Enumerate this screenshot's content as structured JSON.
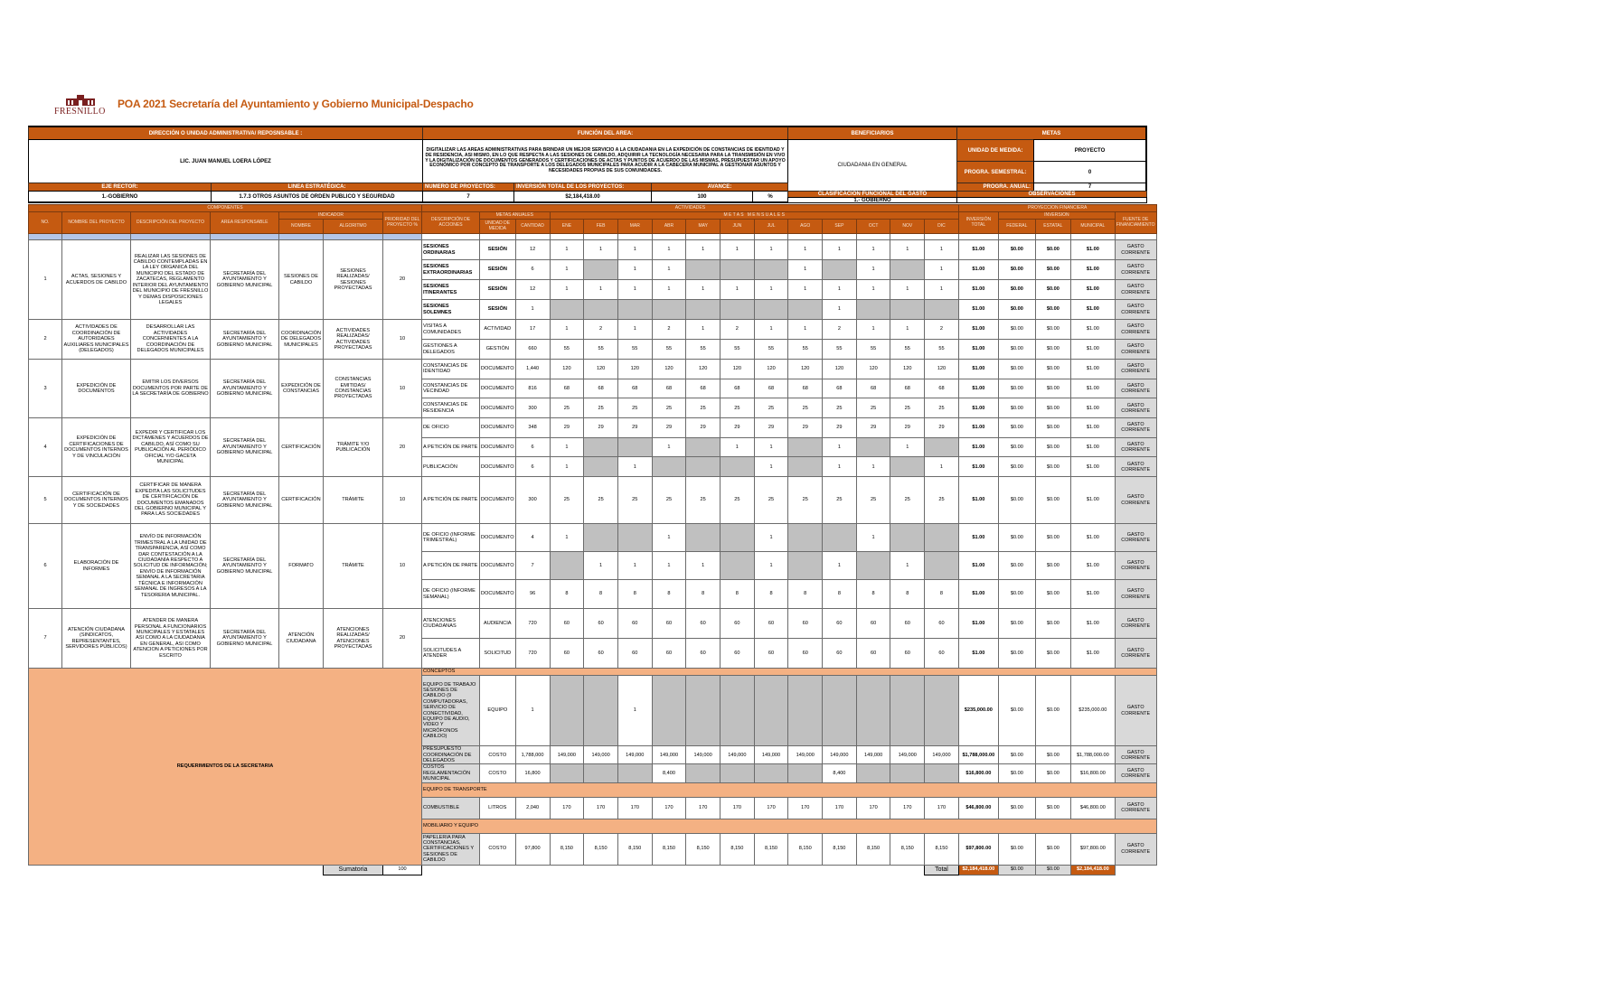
{
  "header": {
    "logo_text": "FRESNILLO",
    "title": "POA 2021 Secretaría del Ayuntamiento y Gobierno Municipal-Despacho"
  },
  "colors": {
    "brand_orange": "#c55a11",
    "light_orange": "#f4b183",
    "blue": "#b4c6e7",
    "gray": "#d9d9d9"
  },
  "info": {
    "direccion_label": "DIRECCIÓN O UNIDAD ADMINISTRATIVA/ REPOSNSABLE :",
    "direccion_value": "LIC. JUAN MANUEL LOERA LÓPEZ",
    "funcion_label": "FUNCIÓN DEL AREA:",
    "funcion_value": "DIGITALIZAR LAS AREAS ADMINISTRATIVAS PARA BRINDAR UN MEJOR SERVICIO A LA CIUDADANIA EN LA EXPEDICIÓN DE CONSTANCIAS DE IDENTIDAD Y DE RESIDENCIA, ASI MISMO, EN LO QUE RESPECTA A LAS SESIONES DE CABILDO, ADQUIRIR LA TECNOLOGÍA NECESARIA PARA LA TRANSMISIÓN EN VIVO Y LA DIGITALIZACIÓN DE DOCUMENTOS GENERADOS Y CERTIFICACIONES DE ACTAS Y PUNTOS DE ACUERDO DE LAS MISMAS, PRESUPUESTAR UN APOYO ECONÓMICO POR CONCEPTO DE TRANSPORTE A LOS DELEGADOS MUNICIPALES PARA ACUDIR A LA CABECERA MUNICIPAL A GESTIONAR ASUNTOS Y NECESIDADES PROPIAS DE SUS COMUNIDADES.",
    "beneficiarios_label": "BENEFICIARIOS",
    "beneficiarios_value": "CIUDADANIA EN GENERAL",
    "metas_label": "METAS",
    "unidad_medida_label": "UNIDAD DE MEDIDA:",
    "unidad_medida_value": "PROYECTO",
    "progra_semestral_label": "PROGRA. SEMESTRAL:",
    "progra_semestral_value": "0",
    "progra_anual_label": "PROGRA. ANUAL:",
    "progra_anual_value": "7",
    "eje_label": "EJE RECTOR:",
    "eje_value": "1.-GOBIERNO",
    "linea_label": "LINEA ESTRATÉGICA:",
    "linea_value": "1.7.3 OTROS ASUNTOS DE ORDEN PUBLICO Y SEGURIDAD",
    "num_proyectos_label": "NUMERO DE PROYECTOS:",
    "num_proyectos_value": "7",
    "inversion_label": "INVERSIÓN TOTAL DE LOS PROYECTOS:",
    "inversion_value": "$2,184,418.00",
    "avance_label": "AVANCE:",
    "avance_value": "100",
    "avance_unit": "%",
    "clasificacion_label": "CLASIFICACION FUNCIONAL DEL GASTO",
    "clasificacion_value": "1.- GOBIERNO",
    "observaciones_label": "OBSERVACIONES",
    "observaciones_value": ""
  },
  "columns": {
    "componentes": "COMPONENTES",
    "actividades": "ACTIVIDADES",
    "proyeccion": "PROYECCION FINANCIERA",
    "no": "NO.",
    "nombre_proyecto": "NOMBRE DEL PROYECTO",
    "descripcion_proyecto": "DESCRIPCIÓN DEL PROYECTO",
    "area": "AREA RESPONSABLE",
    "indicador": "INDICADOR",
    "indicador_nombre": "NOMBRE",
    "algoritmo": "ALGORITMO",
    "prioridad": "PRIORIDAD DEL PROYECTO %",
    "descripcion_acciones": "DESCRIPCIÓN DE ACCIONES",
    "metas_anuales": "METAS ANUALES",
    "unidad_medida": "UNIDAD DE MEDIDA",
    "cantidad": "CANTIDAD",
    "metas_mensuales": "M E T A S   M E N S U A L E S",
    "months": [
      "ENE",
      "FEB",
      "MAR",
      "ABR",
      "MAY",
      "JUN",
      "JUL",
      "AGO",
      "SEP",
      "OCT",
      "NOV",
      "DIC"
    ],
    "inversion_total": "INVERSIÓN TOTAL",
    "inversion": "INVERSIÓN",
    "federal": "FEDERAL",
    "estatal": "ESTATAL",
    "municipal": "MUNICIPAL",
    "fuente": "FUENTE DE FINANCIAMIENTO"
  },
  "projects": [
    {
      "no": "1",
      "nombre": "ACTAS, SESIONES Y ACUERDOS DE CABILDO",
      "descripcion": "REALIZAR LAS SESIONES DE CABILDO CONTEMPLADAS EN LA LEY ORGANICA DEL MUNICIPIO DEL ESTADO DE ZACATECAS, REGLAMENTO INTERIOR DEL AYUNTAMIENTO DEL MUNICIPIO DE FRESNILLO Y DEMAS DISPOSICIONES LEGALES",
      "area": "SECRETARÍA DEL AYUNTAMIENTO Y GOBIERNO MUNICIPAL",
      "indicador": "SESIONES DE CABILDO",
      "algoritmo": "SESIONES REALIZADAS/ SESIONES PROYECTADAS",
      "prioridad": "20",
      "bold": true,
      "acciones": [
        {
          "desc": "SESIONES ORDINARIAS",
          "unidad": "SESIÓN",
          "cantidad": "12",
          "months": [
            "1",
            "1",
            "1",
            "1",
            "1",
            "1",
            "1",
            "1",
            "1",
            "1",
            "1",
            "1"
          ],
          "inversion": "$1.00",
          "federal": "$0.00",
          "estatal": "$0.00",
          "municipal": "$1.00",
          "fuente": "GASTO CORRIENTE"
        },
        {
          "desc": "SESIONES EXTRAORDINARIAS",
          "unidad": "SESIÓN",
          "cantidad": "6",
          "months": [
            "1",
            null,
            "1",
            "1",
            null,
            null,
            null,
            "1",
            null,
            "1",
            null,
            "1"
          ],
          "inversion": "$1.00",
          "federal": "$0.00",
          "estatal": "$0.00",
          "municipal": "$1.00",
          "fuente": "GASTO CORRIENTE"
        },
        {
          "desc": "SESIONES ITINERANTES",
          "unidad": "SESIÓN",
          "cantidad": "12",
          "months": [
            "1",
            "1",
            "1",
            "1",
            "1",
            "1",
            "1",
            "1",
            "1",
            "1",
            "1",
            "1"
          ],
          "inversion": "$1.00",
          "federal": "$0.00",
          "estatal": "$0.00",
          "municipal": "$1.00",
          "fuente": "GASTO CORRIENTE"
        },
        {
          "desc": "SESIONES SOLEMNES",
          "unidad": "SESIÓN",
          "cantidad": "1",
          "months": [
            null,
            null,
            null,
            null,
            null,
            null,
            null,
            null,
            "1",
            null,
            null,
            null
          ],
          "inversion": "$1.00",
          "federal": "$0.00",
          "estatal": "$0.00",
          "municipal": "$1.00",
          "fuente": "GASTO CORRIENTE"
        }
      ]
    },
    {
      "no": "2",
      "nombre": "ACTIVIDADES DE COORDINACIÓN DE AUTORIDADES AUXILIARES MUNICIPALES (DELEGADOS)",
      "descripcion": "DESARROLLAR LAS ACTIVIDADES CONCERNIENTES A LA COORDINACIÓN DE DELEGADOS MUNICIPALES",
      "area": "SECRETARÍA DEL AYUNTAMIENTO Y GOBIERNO MUNICIPAL",
      "indicador": "COORDINACIÓN DE DELEGADOS MUNICIPALES",
      "algoritmo": "ACTIVIDADES REALIZADAS/ ACTIVIDADES PROYECTADAS",
      "prioridad": "10",
      "acciones": [
        {
          "desc": "VISITAS A COMUNIDADES",
          "unidad": "ACTIVIDAD",
          "cantidad": "17",
          "months": [
            "1",
            "2",
            "1",
            "2",
            "1",
            "2",
            "1",
            "1",
            "2",
            "1",
            "1",
            "2"
          ],
          "inversion": "$1.00",
          "federal": "$0.00",
          "estatal": "$0.00",
          "municipal": "$1.00",
          "fuente": "GASTO CORRIENTE"
        },
        {
          "desc": "GESTIONES A DELEGADOS",
          "unidad": "GESTIÓN",
          "cantidad": "660",
          "months": [
            "55",
            "55",
            "55",
            "55",
            "55",
            "55",
            "55",
            "55",
            "55",
            "55",
            "55",
            "55"
          ],
          "inversion": "$1.00",
          "federal": "$0.00",
          "estatal": "$0.00",
          "municipal": "$1.00",
          "fuente": "GASTO CORRIENTE"
        }
      ]
    },
    {
      "no": "3",
      "nombre": "EXPEDICIÓN DE DOCUMENTOS",
      "descripcion": "EMITIR LOS DIVERSOS DOCUMENTOS POR PARTE DE LA SECRETARÍA DE GOBIERNO",
      "area": "SECRETARÍA DEL AYUNTAMIENTO Y GOBIERNO MUNICIPAL",
      "indicador": "EXPEDICIÓN DE CONSTANCIAS",
      "algoritmo": "CONSTANCIAS EMITIDAS/ CONSTANCIAS PROYECTADAS",
      "prioridad": "10",
      "acciones": [
        {
          "desc": "CONSTANCIAS DE IDENTIDAD",
          "unidad": "DOCUMENTO",
          "cantidad": "1,440",
          "months": [
            "120",
            "120",
            "120",
            "120",
            "120",
            "120",
            "120",
            "120",
            "120",
            "120",
            "120",
            "120"
          ],
          "inversion": "$1.00",
          "federal": "$0.00",
          "estatal": "$0.00",
          "municipal": "$1.00",
          "fuente": "GASTO CORRIENTE"
        },
        {
          "desc": "CONSTANCIAS DE VECINDAD",
          "unidad": "DOCUMENTO",
          "cantidad": "816",
          "months": [
            "68",
            "68",
            "68",
            "68",
            "68",
            "68",
            "68",
            "68",
            "68",
            "68",
            "68",
            "68"
          ],
          "inversion": "$1.00",
          "federal": "$0.00",
          "estatal": "$0.00",
          "municipal": "$1.00",
          "fuente": "GASTO CORRIENTE"
        },
        {
          "desc": "CONSTANCIAS DE RESIDENCIA",
          "unidad": "DOCUMENTO",
          "cantidad": "300",
          "months": [
            "25",
            "25",
            "25",
            "25",
            "25",
            "25",
            "25",
            "25",
            "25",
            "25",
            "25",
            "25"
          ],
          "inversion": "$1.00",
          "federal": "$0.00",
          "estatal": "$0.00",
          "municipal": "$1.00",
          "fuente": "GASTO CORRIENTE"
        }
      ]
    },
    {
      "no": "4",
      "nombre": "EXPEDICIÓN DE CERTIFICACIONES DE DOCUMENTOS INTERNOS Y DE VINCULACIÓN",
      "descripcion": "EXPEDIR Y CERTIFICAR LOS DICTÁMENES Y ACUERDOS DE CABILDO, ASÍ COMO SU PUBLICACIÓN AL PERIÓDICO OFICIAL Y/O GACETA MUNICIPAL",
      "area": "SECRETARÍA DEL AYUNTAMIENTO Y GOBIERNO MUNICIPAL",
      "indicador": "CERTIFICACIÓN",
      "algoritmo": "TRÁMITE Y/O PUBLICACIÓN",
      "prioridad": "20",
      "acciones": [
        {
          "desc": "DE OFICIO",
          "unidad": "DOCUMENTO",
          "cantidad": "348",
          "months": [
            "29",
            "29",
            "29",
            "29",
            "29",
            "29",
            "29",
            "29",
            "29",
            "29",
            "29",
            "29"
          ],
          "inversion": "$1.00",
          "federal": "$0.00",
          "estatal": "$0.00",
          "municipal": "$1.00",
          "fuente": "GASTO CORRIENTE"
        },
        {
          "desc": "A PETICIÓN DE PARTE",
          "unidad": "DOCUMENTO",
          "cantidad": "6",
          "months": [
            "1",
            null,
            null,
            "1",
            null,
            "1",
            "1",
            null,
            "1",
            null,
            "1",
            null
          ],
          "inversion": "$1.00",
          "federal": "$0.00",
          "estatal": "$0.00",
          "municipal": "$1.00",
          "fuente": "GASTO CORRIENTE"
        },
        {
          "desc": "PUBLICACIÓN",
          "unidad": "DOCUMENTO",
          "cantidad": "6",
          "months": [
            "1",
            null,
            "1",
            null,
            null,
            null,
            "1",
            null,
            "1",
            "1",
            null,
            "1"
          ],
          "inversion": "$1.00",
          "federal": "$0.00",
          "estatal": "$0.00",
          "municipal": "$1.00",
          "fuente": "GASTO CORRIENTE"
        }
      ]
    },
    {
      "no": "5",
      "nombre": "CERTIFICACIÓN DE DOCUMENTOS INTERNOS Y DE SOCIEDADES",
      "descripcion": "CERTIFICAR DE MANERA EXPEDITA LAS SOLICITUDES DE CERTIFICACIÓN DE DOCUMENTOS EMANADOS DEL GOBIERNO MUNICIPAL Y PARA LAS SOCIEDADES",
      "area": "SECRETARÍA DEL AYUNTAMIENTO Y GOBIERNO MUNICIPAL",
      "indicador": "CERTIFICACIÓN",
      "algoritmo": "TRÁMITE",
      "prioridad": "10",
      "acciones": [
        {
          "desc": "A PETICIÓN DE PARTE",
          "unidad": "DOCUMENTO",
          "cantidad": "300",
          "months": [
            "25",
            "25",
            "25",
            "25",
            "25",
            "25",
            "25",
            "25",
            "25",
            "25",
            "25",
            "25"
          ],
          "inversion": "$1.00",
          "federal": "$0.00",
          "estatal": "$0.00",
          "municipal": "$1.00",
          "fuente": "GASTO CORRIENTE"
        }
      ]
    },
    {
      "no": "6",
      "nombre": "ELABORACIÓN DE INFORMES",
      "descripcion": "ENVÍO DE INFORMACIÓN TRIMESTRAL A LA UNIDAD DE TRANSPARENCIA, ASÍ COMO DAR CONTESTACIÓN A LA CIUDADANÍA RESPECTO A SOLICITUD DE INFORMACIÓN; ENVÍO DE INFORMACIÓN SEMANAL A LA SECRETARIA TÉCNICA E INFORMACIÓN SEMANAL DE INGRESOS A LA TESORERIA MUNICIPAL.",
      "area": "SECRETARÍA DEL AYUNTAMIENTO Y GOBIERNO MUNICIPAL",
      "indicador": "FORMATO",
      "algoritmo": "TRÁMITE",
      "prioridad": "10",
      "acciones": [
        {
          "desc": "DE OFICIO (INFORME TRIMESTRAL)",
          "unidad": "DOCUMENTO",
          "cantidad": "4",
          "months": [
            "1",
            null,
            null,
            "1",
            null,
            null,
            "1",
            null,
            null,
            "1",
            null,
            null
          ],
          "inversion": "$1.00",
          "federal": "$0.00",
          "estatal": "$0.00",
          "municipal": "$1.00",
          "fuente": "GASTO CORRIENTE"
        },
        {
          "desc": "A PETICIÓN DE PARTE",
          "unidad": "DOCUMENTO",
          "cantidad": "7",
          "months": [
            null,
            "1",
            "1",
            "1",
            "1",
            null,
            "1",
            null,
            "1",
            null,
            "1",
            null
          ],
          "inversion": "$1.00",
          "federal": "$0.00",
          "estatal": "$0.00",
          "municipal": "$1.00",
          "fuente": "GASTO CORRIENTE"
        },
        {
          "desc": "DE OFICIO (INFORME SEMANAL)",
          "unidad": "DOCUMENTO",
          "cantidad": "96",
          "months": [
            "8",
            "8",
            "8",
            "8",
            "8",
            "8",
            "8",
            "8",
            "8",
            "8",
            "8",
            "8"
          ],
          "inversion": "$1.00",
          "federal": "$0.00",
          "estatal": "$0.00",
          "municipal": "$1.00",
          "fuente": "GASTO CORRIENTE"
        }
      ]
    },
    {
      "no": "7",
      "nombre": "ATENCIÓN CIUDADANA (SINDICATOS, REPRESENTANTES, SERVIDORES PÚBLICOS)",
      "descripcion": "ATENDER DE MANERA PERSONAL A FUNCIONARIOS MUNICIPALES Y ESTATALES ASI COMO A LA CIUDADANIA EN GENERAL, ASI COMO ATENCION A PETICIONES POR ESCRITO",
      "area": "SECRETARÍA DEL AYUNTAMIENTO Y GOBIERNO MUNICIPAL",
      "indicador": "ATENCIÓN CIUDADANA",
      "algoritmo": "ATENCIONES REALIZADAS/ ATENCIONES PROYECTADAS",
      "prioridad": "20",
      "acciones": [
        {
          "desc": "ATENCIONES CIUDADANAS",
          "unidad": "AUDIENCIA",
          "cantidad": "720",
          "months": [
            "60",
            "60",
            "60",
            "60",
            "60",
            "60",
            "60",
            "60",
            "60",
            "60",
            "60",
            "60"
          ],
          "inversion": "$1.00",
          "federal": "$0.00",
          "estatal": "$0.00",
          "municipal": "$1.00",
          "fuente": "GASTO CORRIENTE"
        },
        {
          "desc": "SOLICITUDES A ATENDER",
          "unidad": "SOLICITUD",
          "cantidad": "720",
          "months": [
            "60",
            "60",
            "60",
            "60",
            "60",
            "60",
            "60",
            "60",
            "60",
            "60",
            "60",
            "60"
          ],
          "inversion": "$1.00",
          "federal": "$0.00",
          "estatal": "$0.00",
          "municipal": "$1.00",
          "fuente": "GASTO CORRIENTE"
        }
      ]
    }
  ],
  "requirements": {
    "label": "REQUERIMIENTOS DE LA SECRETARIA",
    "rows": [
      {
        "band": "CONCEPTOS"
      },
      {
        "desc": "EQUIPO DE TRABAJO SESIONES DE CABILDO (9 COMPUTADORAS, SERVICIO DE CONECTIVIDAD, EQUIPO DE AUDIO, VIDEO Y MICRÓFONOS CABILDO)",
        "unidad": "EQUIPO",
        "cantidad": "1",
        "months": [
          null,
          null,
          "1",
          null,
          null,
          null,
          null,
          null,
          null,
          null,
          null,
          null
        ],
        "inversion": "$235,000.00",
        "federal": "$0.00",
        "estatal": "$0.00",
        "municipal": "$235,000.00",
        "fuente": "GASTO CORRIENTE"
      },
      {
        "desc": "PRESUPUESTO COORDINACIÓN DE DELEGADOS",
        "unidad": "COSTO",
        "cantidad": "1,788,000",
        "months": [
          "149,000",
          "149,000",
          "149,000",
          "149,000",
          "149,000",
          "149,000",
          "149,000",
          "149,000",
          "149,000",
          "149,000",
          "149,000",
          "149,000"
        ],
        "inversion": "$1,788,000.00",
        "federal": "$0.00",
        "estatal": "$0.00",
        "municipal": "$1,788,000.00",
        "fuente": "GASTO CORRIENTE"
      },
      {
        "desc": "COSTOS REGLAMENTACIÓN MUNICIPAL",
        "unidad": "COSTO",
        "cantidad": "16,800",
        "months": [
          null,
          null,
          null,
          "8,400",
          null,
          null,
          null,
          null,
          "8,400",
          null,
          null,
          null
        ],
        "inversion": "$16,800.00",
        "federal": "$0.00",
        "estatal": "$0.00",
        "municipal": "$16,800.00",
        "fuente": "GASTO CORRIENTE"
      },
      {
        "band": "EQUIPO DE TRANSPORTE"
      },
      {
        "desc": "COMBUSTIBLE",
        "unidad": "LITROS",
        "cantidad": "2,040",
        "months": [
          "170",
          "170",
          "170",
          "170",
          "170",
          "170",
          "170",
          "170",
          "170",
          "170",
          "170",
          "170"
        ],
        "inversion": "$46,800.00",
        "federal": "$0.00",
        "estatal": "$0.00",
        "municipal": "$46,800.00",
        "fuente": "GASTO CORRIENTE"
      },
      {
        "band": "MOBILIARIO Y EQUIPO"
      },
      {
        "desc": "PAPELERIA PARA CONSTANCIAS, CERTIFICACIONES Y SESIONES DE CABILDO",
        "unidad": "COSTO",
        "cantidad": "97,800",
        "months": [
          "8,150",
          "8,150",
          "8,150",
          "8,150",
          "8,150",
          "8,150",
          "8,150",
          "8,150",
          "8,150",
          "8,150",
          "8,150",
          "8,150"
        ],
        "inversion": "$97,800.00",
        "federal": "$0.00",
        "estatal": "$0.00",
        "municipal": "$97,800.00",
        "fuente": "GASTO CORRIENTE"
      }
    ]
  },
  "footer": {
    "sumatoria_label": "Sumatoria",
    "sumatoria_value": "100",
    "total_label": "Total",
    "total_inversion": "$2,184,418.00",
    "total_federal": "$0.00",
    "total_estatal": "$0.00",
    "total_municipal": "$2,184,418.00"
  }
}
